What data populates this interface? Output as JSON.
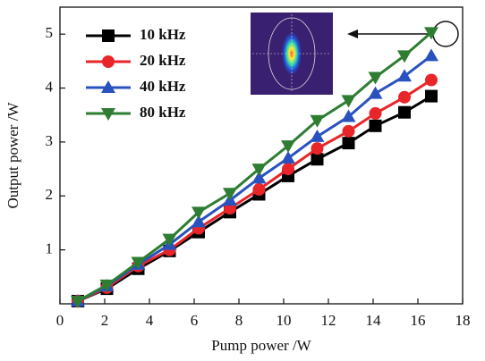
{
  "chart_data": {
    "type": "line",
    "xlabel": "Pump power /W",
    "ylabel": "Output power /W",
    "x": [
      0.8,
      2.1,
      3.5,
      4.9,
      6.2,
      7.6,
      8.9,
      10.2,
      11.5,
      12.9,
      14.1,
      15.4,
      16.6
    ],
    "series": [
      {
        "name": "10 kHz",
        "color": "#000000",
        "marker": "square",
        "values": [
          0.05,
          0.28,
          0.65,
          0.98,
          1.33,
          1.7,
          2.03,
          2.37,
          2.68,
          2.98,
          3.3,
          3.55,
          3.85
        ]
      },
      {
        "name": "20 kHz",
        "color": "#e8262a",
        "marker": "circle",
        "values": [
          0.05,
          0.3,
          0.7,
          1.0,
          1.4,
          1.77,
          2.12,
          2.5,
          2.88,
          3.2,
          3.53,
          3.83,
          4.15
        ]
      },
      {
        "name": "40 kHz",
        "color": "#2a52be",
        "marker": "triangle-up",
        "values": [
          0.05,
          0.33,
          0.73,
          1.1,
          1.52,
          1.92,
          2.33,
          2.7,
          3.1,
          3.47,
          3.9,
          4.22,
          4.6
        ]
      },
      {
        "name": "80 kHz",
        "color": "#2e7d32",
        "marker": "triangle-down",
        "values": [
          0.05,
          0.35,
          0.77,
          1.2,
          1.7,
          2.05,
          2.5,
          2.93,
          3.4,
          3.77,
          4.2,
          4.6,
          5.03
        ]
      }
    ],
    "xlim": [
      0,
      18
    ],
    "xticks": [
      0,
      2,
      4,
      6,
      8,
      10,
      12,
      14,
      16,
      18
    ],
    "ylim": [
      0,
      5.5
    ],
    "yticks": [
      1,
      2,
      3,
      4,
      5
    ],
    "legend": "upper left"
  }
}
